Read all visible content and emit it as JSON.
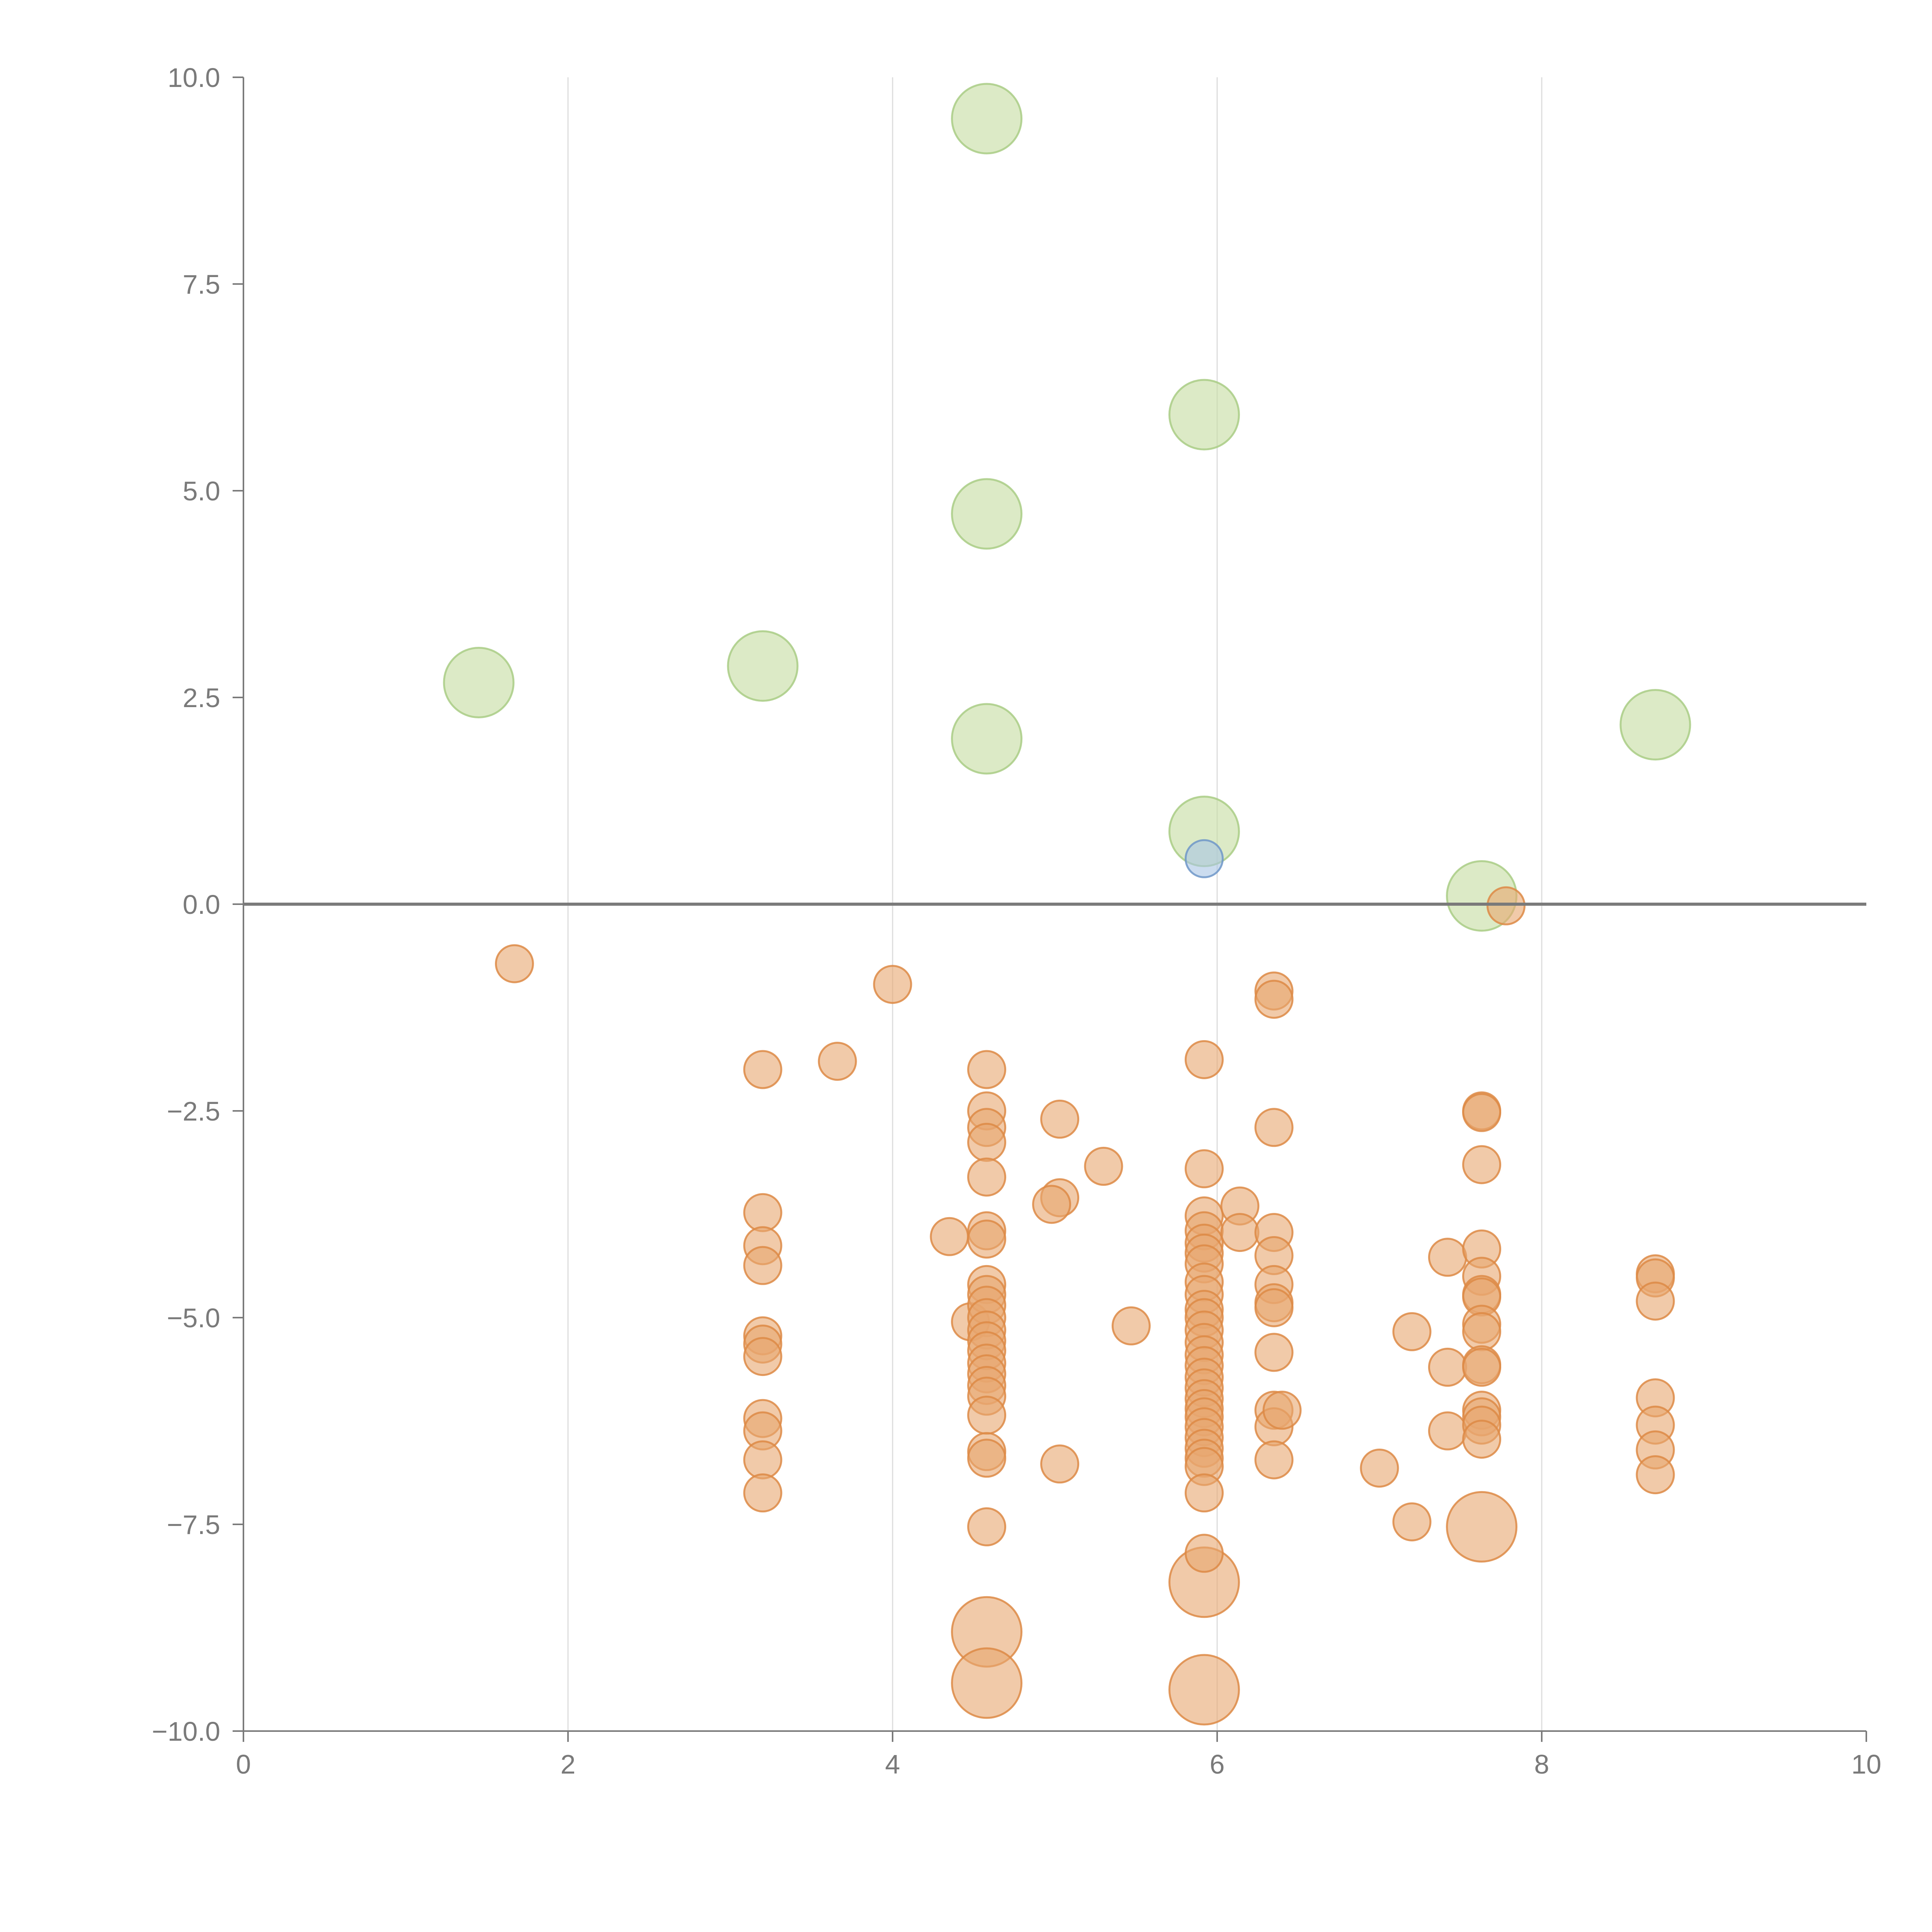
{
  "chart_data": {
    "type": "scatter",
    "title": "",
    "xlabel": "",
    "ylabel": "",
    "xlim": [
      0,
      10
    ],
    "ylim": [
      -10,
      10
    ],
    "grid": {
      "vertical": true,
      "horizontal": false
    },
    "zero_line": true,
    "x_ticks": [
      "0",
      "2",
      "4",
      "6",
      "8",
      "10"
    ],
    "y_ticks": [
      "−10.0",
      "−7.5",
      "−5.0",
      "−2.5",
      "0.0",
      "2.5",
      "5.0",
      "7.5",
      "10.0"
    ],
    "colors": {
      "green": {
        "fill": "#c5dca0",
        "stroke": "#a9cc85"
      },
      "orange": {
        "fill": "#e8a670",
        "stroke": "#dd8a45"
      },
      "blue": {
        "fill": "#a9c4e4",
        "stroke": "#6f96c8"
      }
    },
    "series": [
      {
        "color": "green",
        "size": "large",
        "points": [
          [
            4.58,
            9.5
          ],
          [
            5.92,
            5.92
          ],
          [
            4.58,
            4.72
          ],
          [
            3.2,
            2.88
          ],
          [
            1.45,
            2.68
          ],
          [
            4.58,
            2.0
          ],
          [
            8.7,
            2.17
          ],
          [
            5.92,
            0.88
          ],
          [
            7.63,
            0.1
          ]
        ]
      },
      {
        "color": "blue",
        "size": "small",
        "points": [
          [
            5.92,
            0.55
          ]
        ]
      },
      {
        "color": "orange",
        "size": "large",
        "points": [
          [
            4.58,
            -8.8
          ],
          [
            4.58,
            -9.42
          ],
          [
            5.92,
            -8.2
          ],
          [
            5.92,
            -9.5
          ],
          [
            7.63,
            -7.53
          ]
        ]
      },
      {
        "color": "orange",
        "size": "small",
        "points": [
          [
            7.78,
            -0.02
          ],
          [
            1.67,
            -0.72
          ],
          [
            4.0,
            -0.97
          ],
          [
            3.2,
            -2.0
          ],
          [
            3.2,
            -3.73
          ],
          [
            3.2,
            -4.13
          ],
          [
            3.2,
            -4.37
          ],
          [
            3.2,
            -5.22
          ],
          [
            3.2,
            -5.32
          ],
          [
            3.2,
            -5.47
          ],
          [
            3.2,
            -6.22
          ],
          [
            3.2,
            -6.37
          ],
          [
            3.2,
            -6.72
          ],
          [
            3.2,
            -7.12
          ],
          [
            3.66,
            -1.9
          ],
          [
            4.35,
            -4.02
          ],
          [
            4.48,
            -5.05
          ],
          [
            4.58,
            -2.0
          ],
          [
            4.58,
            -2.5
          ],
          [
            4.58,
            -2.7
          ],
          [
            4.58,
            -2.88
          ],
          [
            4.58,
            -3.3
          ],
          [
            4.58,
            -3.95
          ],
          [
            4.58,
            -4.05
          ],
          [
            4.58,
            -4.6
          ],
          [
            4.58,
            -4.72
          ],
          [
            4.58,
            -4.85
          ],
          [
            4.58,
            -5.0
          ],
          [
            4.58,
            -5.15
          ],
          [
            4.58,
            -5.28
          ],
          [
            4.58,
            -5.4
          ],
          [
            4.58,
            -5.55
          ],
          [
            4.58,
            -5.68
          ],
          [
            4.58,
            -5.82
          ],
          [
            4.58,
            -5.95
          ],
          [
            4.58,
            -6.18
          ],
          [
            4.58,
            -6.62
          ],
          [
            4.58,
            -6.7
          ],
          [
            4.58,
            -7.53
          ],
          [
            5.03,
            -2.6
          ],
          [
            5.03,
            -3.55
          ],
          [
            5.03,
            -6.77
          ],
          [
            4.98,
            -3.63
          ],
          [
            5.3,
            -3.17
          ],
          [
            5.47,
            -5.1
          ],
          [
            5.92,
            -1.88
          ],
          [
            5.92,
            -3.2
          ],
          [
            5.92,
            -3.77
          ],
          [
            5.92,
            -3.95
          ],
          [
            5.92,
            -4.1
          ],
          [
            5.92,
            -4.22
          ],
          [
            5.92,
            -4.35
          ],
          [
            5.92,
            -4.57
          ],
          [
            5.92,
            -4.72
          ],
          [
            5.92,
            -4.9
          ],
          [
            5.92,
            -5.0
          ],
          [
            5.92,
            -5.15
          ],
          [
            5.92,
            -5.3
          ],
          [
            5.92,
            -5.45
          ],
          [
            5.92,
            -5.58
          ],
          [
            5.92,
            -5.72
          ],
          [
            5.92,
            -5.85
          ],
          [
            5.92,
            -5.98
          ],
          [
            5.92,
            -6.1
          ],
          [
            5.92,
            -6.2
          ],
          [
            5.92,
            -6.32
          ],
          [
            5.92,
            -6.45
          ],
          [
            5.92,
            -6.58
          ],
          [
            5.92,
            -6.7
          ],
          [
            5.92,
            -6.8
          ],
          [
            5.92,
            -7.12
          ],
          [
            5.92,
            -7.85
          ],
          [
            6.14,
            -3.65
          ],
          [
            6.14,
            -3.97
          ],
          [
            6.35,
            -1.05
          ],
          [
            6.35,
            -1.15
          ],
          [
            6.35,
            -2.7
          ],
          [
            6.35,
            -3.97
          ],
          [
            6.35,
            -4.25
          ],
          [
            6.35,
            -4.6
          ],
          [
            6.35,
            -4.82
          ],
          [
            6.35,
            -4.88
          ],
          [
            6.35,
            -5.42
          ],
          [
            6.35,
            -6.12
          ],
          [
            6.35,
            -6.32
          ],
          [
            6.35,
            -6.72
          ],
          [
            6.4,
            -6.12
          ],
          [
            7.0,
            -6.82
          ],
          [
            7.2,
            -5.17
          ],
          [
            7.2,
            -7.47
          ],
          [
            7.42,
            -4.27
          ],
          [
            7.42,
            -5.6
          ],
          [
            7.42,
            -6.37
          ],
          [
            7.63,
            -2.5
          ],
          [
            7.63,
            -2.52
          ],
          [
            7.63,
            -3.15
          ],
          [
            7.63,
            -4.17
          ],
          [
            7.63,
            -4.5
          ],
          [
            7.63,
            -4.72
          ],
          [
            7.63,
            -4.75
          ],
          [
            7.63,
            -5.08
          ],
          [
            7.63,
            -5.17
          ],
          [
            7.63,
            -5.57
          ],
          [
            7.63,
            -5.6
          ],
          [
            7.63,
            -6.12
          ],
          [
            7.63,
            -6.2
          ],
          [
            7.63,
            -6.3
          ],
          [
            7.63,
            -6.47
          ],
          [
            8.7,
            -4.47
          ],
          [
            8.7,
            -4.52
          ],
          [
            8.7,
            -4.8
          ],
          [
            8.7,
            -5.97
          ],
          [
            8.7,
            -6.3
          ],
          [
            8.7,
            -6.6
          ],
          [
            8.7,
            -6.9
          ]
        ]
      }
    ]
  }
}
